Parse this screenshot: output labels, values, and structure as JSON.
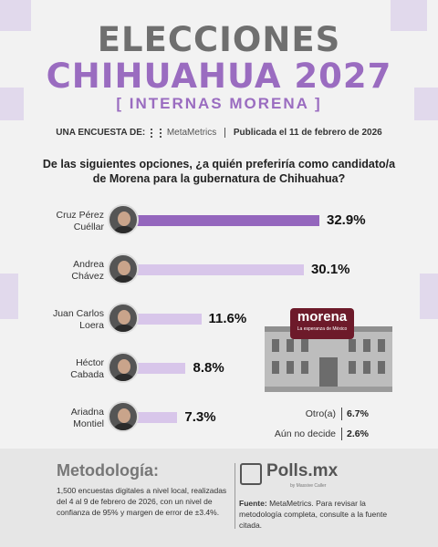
{
  "header": {
    "title_line1": "ELECCIONES",
    "title_line2": "CHIHUAHUA 2027",
    "subtitle": "[ INTERNAS MORENA ]",
    "byline_prefix": "UNA ENCUESTA DE:",
    "byline_brand": "MetaMetrics",
    "byline_date": "Publicada el 11 de febrero de 2026"
  },
  "question": "De las siguientes opciones, ¿a quién preferiría como candidato/a de Morena para la gubernatura de Chihuahua?",
  "colors": {
    "accent_purple": "#9a6cc0",
    "bar_dark": "#9466bd",
    "bar_light": "#d8c6ea",
    "title_gray": "#6f6f6f",
    "morena_red": "#6d1a2a"
  },
  "chart_data": {
    "type": "bar",
    "orientation": "horizontal",
    "title": "De las siguientes opciones, ¿a quién preferiría como candidato/a de Morena para la gubernatura de Chihuahua?",
    "categories": [
      "Cruz Pérez Cuéllar",
      "Andrea Chávez",
      "Juan Carlos Loera",
      "Héctor Cabada",
      "Ariadna Montiel"
    ],
    "category_lines": [
      [
        "Cruz Pérez",
        "Cuéllar"
      ],
      [
        "Andrea",
        "Chávez"
      ],
      [
        "Juan Carlos",
        "Loera"
      ],
      [
        "Héctor",
        "Cabada"
      ],
      [
        "Ariadna",
        "Montiel"
      ]
    ],
    "values": [
      32.9,
      30.1,
      11.6,
      8.8,
      7.3
    ],
    "value_labels": [
      "32.9%",
      "30.1%",
      "11.6%",
      "8.8%",
      "7.3%"
    ],
    "unit": "%",
    "extra": [
      {
        "label": "Otro(a)",
        "value": 6.7,
        "value_label": "6.7%"
      },
      {
        "label": "Aún no decide",
        "value": 2.6,
        "value_label": "2.6%"
      }
    ],
    "grid": false,
    "legend": "none"
  },
  "badge": {
    "brand": "morena",
    "tagline": "La esperanza de México"
  },
  "methodology": {
    "title": "Metodología:",
    "text": "1,500 encuestas digitales a nivel local, realizadas del 4 al 9 de febrero de 2026, con un nivel de confianza de 95% y margen de error de ±3.4%."
  },
  "footer": {
    "logo": "Polls.mx",
    "logo_sub": "by Massive Caller",
    "source_label": "Fuente:",
    "source_text": "MetaMetrics. Para revisar la metodología completa, consulte a la fuente citada."
  }
}
